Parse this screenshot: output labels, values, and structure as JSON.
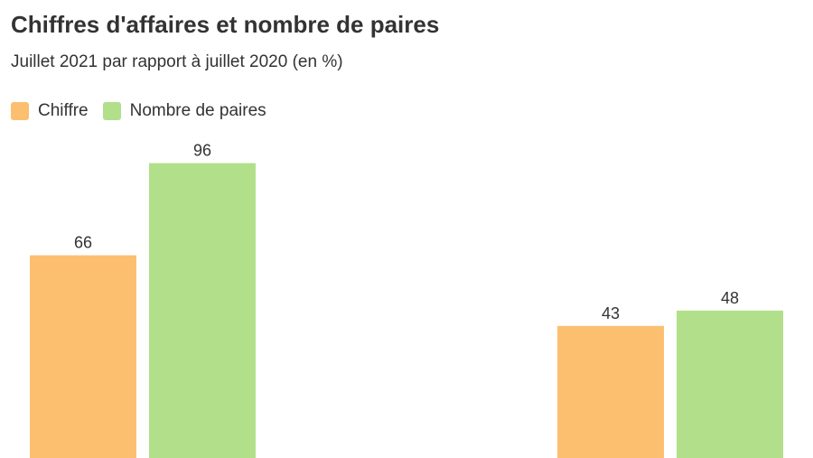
{
  "title": "Chiffres d'affaires et nombre de paires",
  "subtitle": "Juillet 2021 par rapport à juillet 2020 (en %)",
  "colors": {
    "chiffre": "#fcbf6f",
    "paires": "#b2df8a"
  },
  "chart_data": {
    "type": "bar",
    "categories": [
      "",
      ""
    ],
    "series": [
      {
        "name": "Chiffre",
        "values": [
          66,
          43
        ]
      },
      {
        "name": "Nombre de paires",
        "values": [
          96,
          48
        ]
      }
    ],
    "ylim": [
      0,
      100
    ],
    "grid": false,
    "legend": "top-left",
    "data_labels": true
  }
}
